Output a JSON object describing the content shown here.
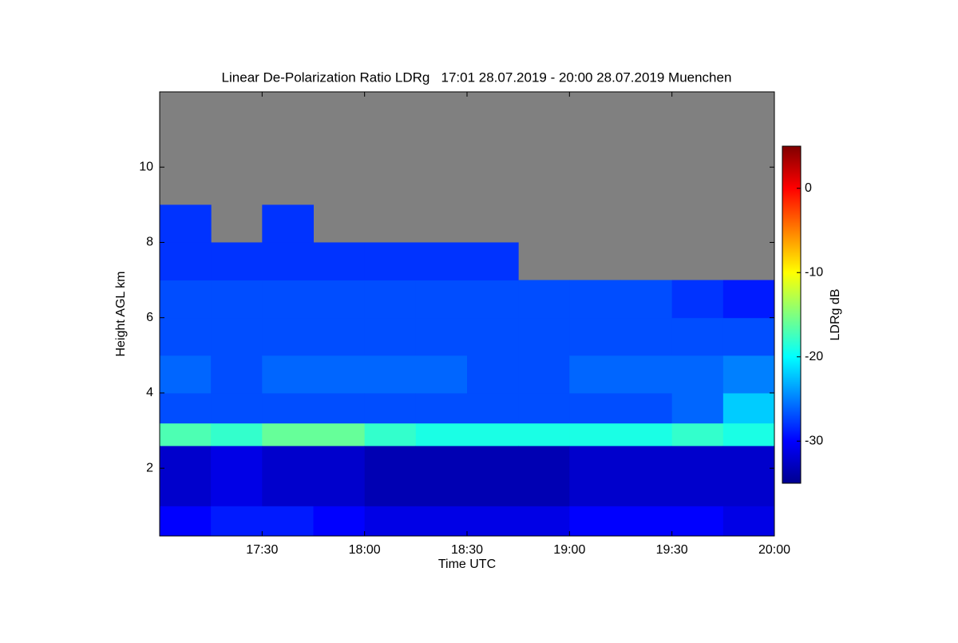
{
  "chart_data": {
    "type": "heatmap",
    "title": "Linear De-Polarization Ratio LDRg   17:01 28.07.2019 - 20:00 28.07.2019 Muenchen",
    "x_label": "Time UTC",
    "y_label": "Height AGL km",
    "colorbar_label": "LDRg dB",
    "xlim": [
      1020,
      1200
    ],
    "xticks": [
      {
        "value": 1050,
        "label": "17:30"
      },
      {
        "value": 1080,
        "label": "18:00"
      },
      {
        "value": 1110,
        "label": "18:30"
      },
      {
        "value": 1140,
        "label": "19:00"
      },
      {
        "value": 1170,
        "label": "19:30"
      },
      {
        "value": 1200,
        "label": "20:00"
      }
    ],
    "ylim": [
      0.2,
      12
    ],
    "yticks": [
      2,
      4,
      6,
      8,
      10
    ],
    "zlim": [
      -35,
      5
    ],
    "zticks": [
      0,
      -10,
      -20,
      -30
    ],
    "x_bins": [
      1020,
      1035,
      1050,
      1065,
      1080,
      1095,
      1110,
      1125,
      1140,
      1155,
      1170,
      1185,
      1200
    ],
    "y_bins": [
      0.2,
      1,
      2,
      2.6,
      3.2,
      4,
      5,
      6,
      7,
      8,
      9,
      12
    ],
    "z": [
      [
        -30,
        -32,
        -32,
        -17,
        -27,
        -26,
        -27,
        -27,
        -28,
        -28,
        null
      ],
      [
        -29,
        -31,
        -31,
        -18,
        -27,
        -27,
        -27,
        -27,
        -28,
        null,
        null
      ],
      [
        -29,
        -32,
        -32,
        -16,
        -27,
        -26,
        -27,
        -27,
        -28,
        -28,
        null
      ],
      [
        -30,
        -32,
        -32,
        -16,
        -27,
        -26,
        -27,
        -27,
        -28,
        null,
        null
      ],
      [
        -31,
        -33,
        -33,
        -18,
        -27,
        -26,
        -27,
        -27,
        -28,
        null,
        null
      ],
      [
        -31,
        -33,
        -33,
        -19,
        -27,
        -26,
        -27,
        -27,
        -28,
        null,
        null
      ],
      [
        -31,
        -33,
        -33,
        -19,
        -27,
        -27,
        -27,
        -27,
        -28,
        null,
        null
      ],
      [
        -31,
        -33,
        -33,
        -19,
        -27,
        -27,
        -27,
        -27,
        null,
        null,
        null
      ],
      [
        -30,
        -32,
        -32,
        -19,
        -27,
        -26,
        -27,
        -27,
        null,
        null,
        null
      ],
      [
        -30,
        -32,
        -32,
        -19,
        -27,
        -26,
        -27,
        -27,
        null,
        null,
        null
      ],
      [
        -30,
        -32,
        -32,
        -18,
        -26,
        -26,
        -27,
        -28,
        null,
        null,
        null
      ],
      [
        -31,
        -32,
        -32,
        -19,
        -22,
        -25,
        -27,
        -29,
        null,
        null,
        null
      ]
    ]
  }
}
